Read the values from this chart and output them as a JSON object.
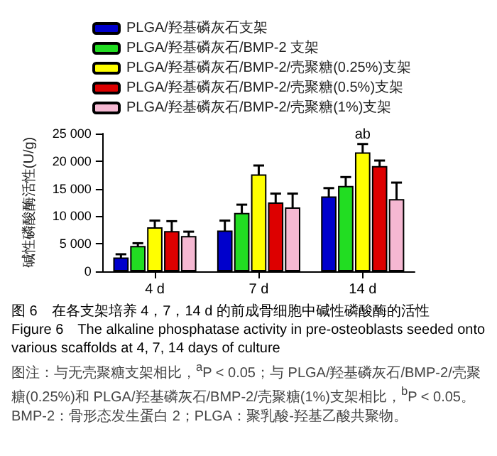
{
  "chart_data": {
    "type": "bar",
    "title": "图 6　在各支架培养 4，7，14 d 的前成骨细胞中碱性磷酸酶的活性",
    "subtitle": "Figure 6　The alkaline phosphatase activity in pre-osteoblasts seeded onto various scaffolds at 4, 7, 14 days of culture",
    "ylabel": "碱性磷酸酶活性(U/g)",
    "categories": [
      "4 d",
      "7 d",
      "14 d"
    ],
    "series": [
      {
        "name": "PLGA/羟基磷灰石支架",
        "color": "#0000cc",
        "values": [
          2500,
          7400,
          13600
        ],
        "errors": [
          600,
          1800,
          1500
        ]
      },
      {
        "name": "PLGA/羟基磷灰石/BMP-2 支架",
        "color": "#22dd22",
        "values": [
          4600,
          10600,
          15500
        ],
        "errors": [
          500,
          1500,
          1600
        ]
      },
      {
        "name": "PLGA/羟基磷灰石/BMP-2/壳聚糖(0.25%)支架",
        "color": "#ffff00",
        "values": [
          8000,
          17600,
          21600
        ],
        "errors": [
          1200,
          1600,
          1500
        ]
      },
      {
        "name": "PLGA/羟基磷灰石/BMP-2/壳聚糖(0.5%)支架",
        "color": "#dd0000",
        "values": [
          7300,
          12500,
          19100
        ],
        "errors": [
          1800,
          1600,
          1000
        ]
      },
      {
        "name": "PLGA/羟基磷灰石/BMP-2/壳聚糖(1%)支架",
        "color": "#f5b8d2",
        "values": [
          6400,
          11600,
          13100
        ],
        "errors": [
          800,
          2500,
          3000
        ]
      }
    ],
    "ylim": [
      0,
      25000
    ],
    "yticks": [
      0,
      {
        "value": 5000,
        "label": "5 000"
      },
      {
        "value": 10000,
        "label": "10 000"
      },
      {
        "value": 15000,
        "label": "15 000"
      },
      {
        "value": 20000,
        "label": "20 000"
      },
      {
        "value": 25000,
        "label": "25 000"
      }
    ],
    "legend": "top left",
    "annotations": [
      {
        "text": "ab",
        "x": "14 d",
        "y": 23500
      },
      "图注：与无壳聚糖支架相比，$^{a}$P < 0.05；与 PLGA/羟基磷灰石/BMP-2/壳聚糖(0.25%)和 PLGA/羟基磷灰石/BMP-2/壳聚糖(1%)支架相比，$^{b}$P < 0.05。BMP-2：骨形态发生蛋白 2；PLGA：聚乳酸-羟基乙酸共聚物。"
    ]
  }
}
